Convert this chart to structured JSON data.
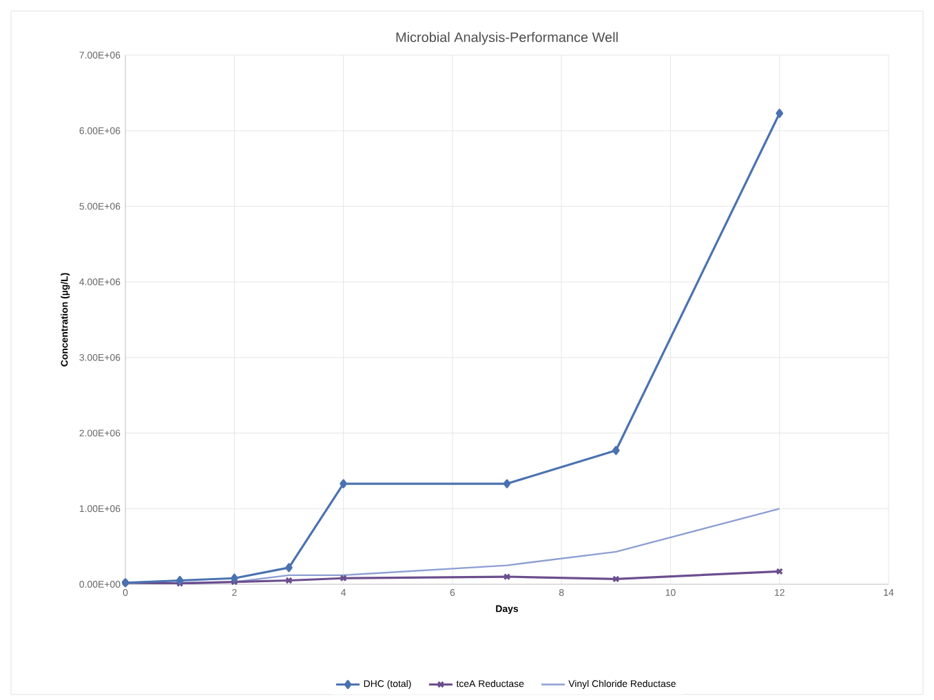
{
  "chart_data": {
    "type": "line",
    "title": "Microbial Analysis-Performance  Well",
    "xlabel": "Days",
    "ylabel": "Concentration (µg/L)",
    "x": [
      0,
      1,
      2,
      3,
      4,
      7,
      9,
      12
    ],
    "series": [
      {
        "name": "DHC (total)",
        "color": "#4a72b0",
        "marker": "diamond",
        "values": [
          20000,
          50000,
          80000,
          220000,
          1330000,
          1330000,
          1770000,
          6230000
        ]
      },
      {
        "name": "tceA Reductase",
        "color": "#6b4e8e",
        "marker": "cross",
        "values": [
          20000,
          10000,
          30000,
          50000,
          80000,
          100000,
          70000,
          170000
        ]
      },
      {
        "name": "Vinyl Chloride Reductase",
        "color": "#8d9fd2",
        "marker": "none",
        "values": [
          20000,
          20000,
          30000,
          120000,
          120000,
          250000,
          430000,
          1000000
        ]
      }
    ],
    "xlim": [
      0,
      14
    ],
    "xticks": [
      0,
      2,
      4,
      6,
      8,
      10,
      12,
      14
    ],
    "ylim": [
      0,
      7000000
    ],
    "yticks": [
      {
        "value": 0,
        "label": "0.00E+00"
      },
      {
        "value": 1000000,
        "label": "1.00E+06"
      },
      {
        "value": 2000000,
        "label": "2.00E+06"
      },
      {
        "value": 3000000,
        "label": "3.00E+06"
      },
      {
        "value": 4000000,
        "label": "4.00E+06"
      },
      {
        "value": 5000000,
        "label": "5.00E+06"
      },
      {
        "value": 6000000,
        "label": "6.00E+06"
      },
      {
        "value": 7000000,
        "label": "7.00E+06"
      }
    ],
    "grid": true,
    "legend": "bottom",
    "line_style": "solid"
  }
}
